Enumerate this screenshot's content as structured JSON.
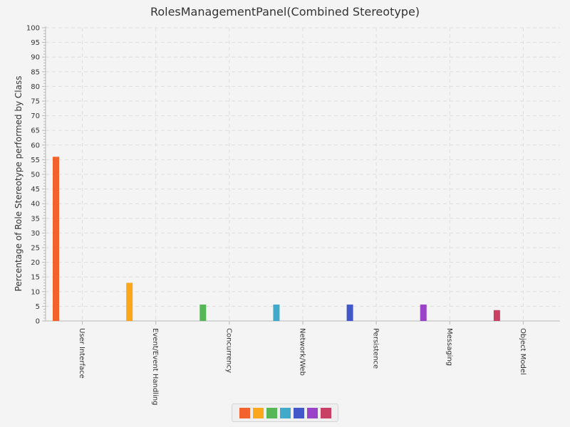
{
  "colors": {
    "bar_palette": [
      "#f3622d",
      "#fba71b",
      "#57b757",
      "#41a9c9",
      "#4258c9",
      "#9a42c8",
      "#c84164"
    ],
    "grid": "#dedede",
    "axis": "#b9b9b9",
    "text": "#333333"
  },
  "chart_data": {
    "type": "bar",
    "title": "RolesManagementPanel(Combined Stereotype)",
    "ylabel": "Percentage of Role Stereotype performed by Class",
    "xlabel": "",
    "ylim": [
      0,
      100
    ],
    "ytick_step": 5,
    "grid": true,
    "legend_position": "bottom-center",
    "categories": [
      "User Interface",
      "Event/Event Handling",
      "Concurrency",
      "Network/Web",
      "Persistence",
      "Messaging",
      "Object Model"
    ],
    "series": [
      {
        "values": [
          56,
          0,
          0,
          0,
          0,
          0,
          0
        ]
      },
      {
        "values": [
          0,
          13,
          0,
          0,
          0,
          0,
          0
        ]
      },
      {
        "values": [
          0,
          0,
          5.6,
          0,
          0,
          0,
          0
        ]
      },
      {
        "values": [
          0,
          0,
          0,
          5.6,
          0,
          0,
          0
        ]
      },
      {
        "values": [
          0,
          0,
          0,
          0,
          5.6,
          0,
          0
        ]
      },
      {
        "values": [
          0,
          0,
          0,
          0,
          0,
          5.6,
          0
        ]
      },
      {
        "values": [
          0,
          0,
          0,
          0,
          0,
          0,
          3.7
        ]
      }
    ]
  }
}
